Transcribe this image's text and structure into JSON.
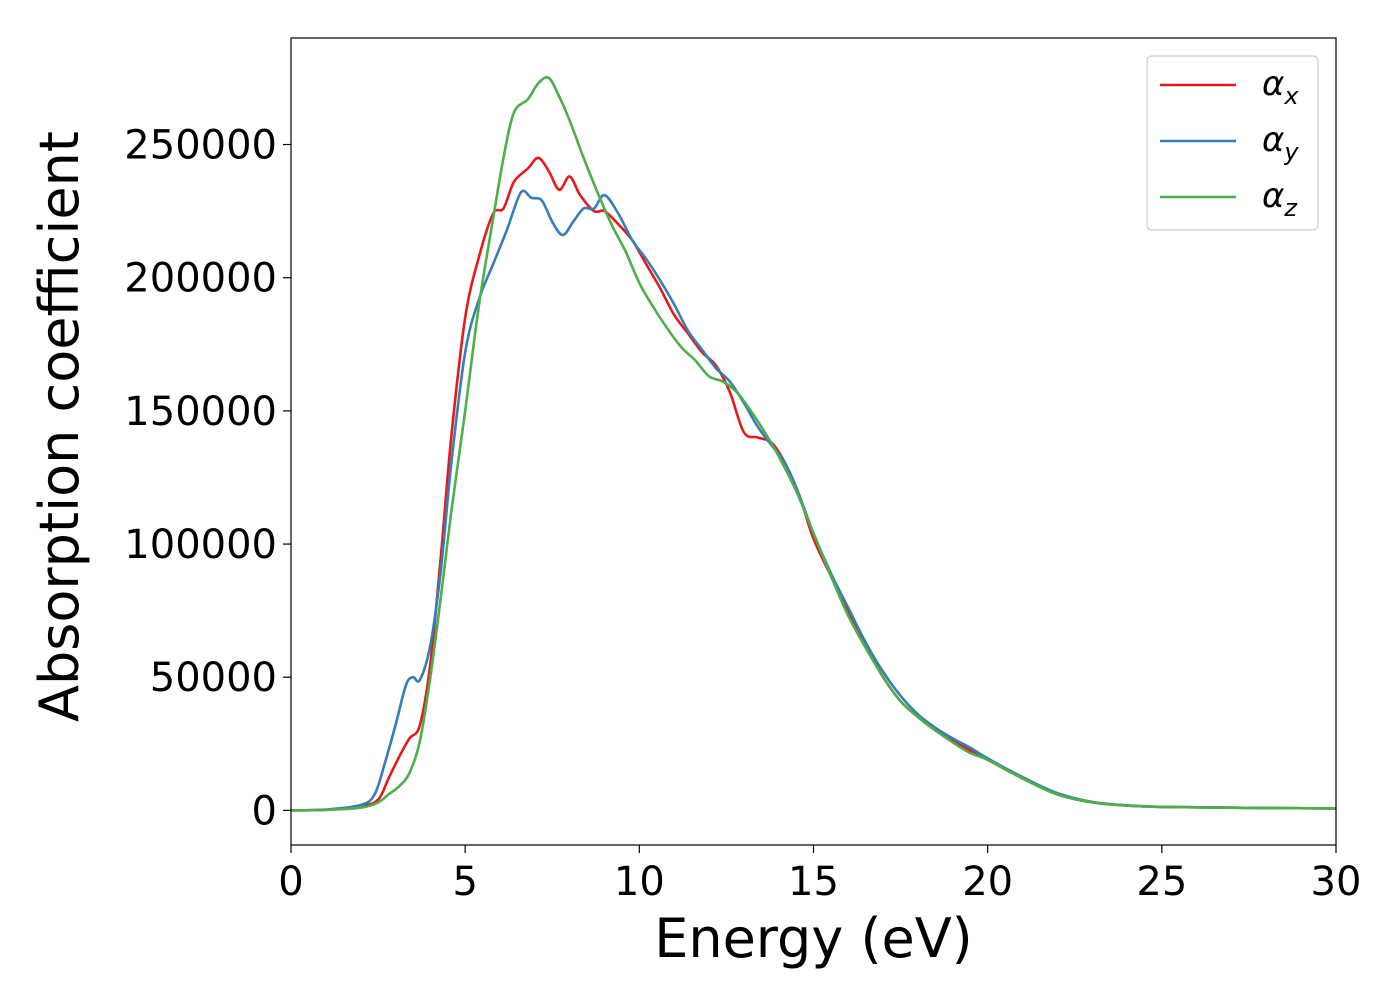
{
  "chart_data": {
    "type": "line",
    "title": "",
    "xlabel": "Energy (eV)",
    "ylabel": "Absorption coefficient",
    "xlim": [
      0,
      30
    ],
    "ylim": [
      -13000,
      290000
    ],
    "xticks": [
      0,
      5,
      10,
      15,
      20,
      25,
      30
    ],
    "yticks": [
      0,
      50000,
      100000,
      150000,
      200000,
      250000
    ],
    "grid": false,
    "legend_position": "top-right",
    "series": [
      {
        "name": "αx",
        "name_base": "α",
        "name_sub": "x",
        "color": "#e41a1c",
        "points": [
          [
            0,
            0
          ],
          [
            1,
            200
          ],
          [
            2,
            1500
          ],
          [
            2.5,
            4000
          ],
          [
            2.8,
            12000
          ],
          [
            3.1,
            20000
          ],
          [
            3.4,
            27000
          ],
          [
            3.7,
            32000
          ],
          [
            4,
            55000
          ],
          [
            4.3,
            95000
          ],
          [
            4.6,
            140000
          ],
          [
            5,
            185000
          ],
          [
            5.4,
            208000
          ],
          [
            5.8,
            224000
          ],
          [
            6.1,
            226000
          ],
          [
            6.4,
            236000
          ],
          [
            6.8,
            241000
          ],
          [
            7.1,
            245000
          ],
          [
            7.4,
            240000
          ],
          [
            7.7,
            233000
          ],
          [
            8,
            238000
          ],
          [
            8.3,
            231000
          ],
          [
            8.7,
            225000
          ],
          [
            9,
            225000
          ],
          [
            9.4,
            220000
          ],
          [
            9.8,
            214000
          ],
          [
            10.2,
            205000
          ],
          [
            10.6,
            196000
          ],
          [
            11,
            186000
          ],
          [
            11.4,
            179000
          ],
          [
            11.8,
            172000
          ],
          [
            12.2,
            167000
          ],
          [
            12.6,
            157000
          ],
          [
            13,
            142000
          ],
          [
            13.4,
            140000
          ],
          [
            13.8,
            138000
          ],
          [
            14.2,
            130000
          ],
          [
            14.6,
            118000
          ],
          [
            15,
            102000
          ],
          [
            15.5,
            88000
          ],
          [
            16,
            75000
          ],
          [
            16.5,
            62000
          ],
          [
            17,
            50000
          ],
          [
            17.5,
            41000
          ],
          [
            18,
            35000
          ],
          [
            18.5,
            30000
          ],
          [
            19,
            26000
          ],
          [
            19.5,
            22500
          ],
          [
            20,
            19000
          ],
          [
            21,
            12000
          ],
          [
            22,
            6000
          ],
          [
            23,
            3000
          ],
          [
            24,
            1800
          ],
          [
            25,
            1300
          ],
          [
            27,
            1000
          ],
          [
            30,
            700
          ]
        ]
      },
      {
        "name": "αy",
        "name_base": "α",
        "name_sub": "y",
        "color": "#377eb8",
        "points": [
          [
            0,
            0
          ],
          [
            1,
            300
          ],
          [
            2,
            2000
          ],
          [
            2.4,
            6000
          ],
          [
            2.7,
            18000
          ],
          [
            3,
            32000
          ],
          [
            3.3,
            47000
          ],
          [
            3.5,
            50000
          ],
          [
            3.7,
            49000
          ],
          [
            4,
            62000
          ],
          [
            4.3,
            90000
          ],
          [
            4.6,
            130000
          ],
          [
            5,
            172000
          ],
          [
            5.4,
            192000
          ],
          [
            5.8,
            205000
          ],
          [
            6.2,
            218000
          ],
          [
            6.6,
            232000
          ],
          [
            6.9,
            230000
          ],
          [
            7.2,
            229000
          ],
          [
            7.5,
            221000
          ],
          [
            7.8,
            216000
          ],
          [
            8.1,
            221000
          ],
          [
            8.4,
            226000
          ],
          [
            8.7,
            226000
          ],
          [
            9,
            231000
          ],
          [
            9.4,
            224000
          ],
          [
            9.8,
            214000
          ],
          [
            10.2,
            207000
          ],
          [
            10.6,
            199000
          ],
          [
            11,
            190000
          ],
          [
            11.4,
            180000
          ],
          [
            11.8,
            173000
          ],
          [
            12.2,
            166000
          ],
          [
            12.6,
            161000
          ],
          [
            13,
            153000
          ],
          [
            13.4,
            144000
          ],
          [
            13.8,
            137000
          ],
          [
            14.2,
            130000
          ],
          [
            14.6,
            118000
          ],
          [
            15,
            104000
          ],
          [
            15.5,
            89000
          ],
          [
            16,
            76000
          ],
          [
            16.5,
            63000
          ],
          [
            17,
            52000
          ],
          [
            17.5,
            43000
          ],
          [
            18,
            36000
          ],
          [
            18.5,
            31000
          ],
          [
            19,
            27000
          ],
          [
            19.5,
            23500
          ],
          [
            20,
            19500
          ],
          [
            21,
            12500
          ],
          [
            22,
            6500
          ],
          [
            23,
            3200
          ],
          [
            24,
            1900
          ],
          [
            25,
            1300
          ],
          [
            27,
            1000
          ],
          [
            30,
            700
          ]
        ]
      },
      {
        "name": "αz",
        "name_base": "α",
        "name_sub": "z",
        "color": "#4daf4a",
        "points": [
          [
            0,
            0
          ],
          [
            1,
            200
          ],
          [
            2,
            1000
          ],
          [
            2.5,
            3000
          ],
          [
            2.8,
            6000
          ],
          [
            3.1,
            9000
          ],
          [
            3.4,
            14000
          ],
          [
            3.7,
            26000
          ],
          [
            4,
            50000
          ],
          [
            4.3,
            80000
          ],
          [
            4.6,
            112000
          ],
          [
            5,
            150000
          ],
          [
            5.4,
            190000
          ],
          [
            5.8,
            222000
          ],
          [
            6.1,
            245000
          ],
          [
            6.4,
            262000
          ],
          [
            6.8,
            267000
          ],
          [
            7.1,
            273000
          ],
          [
            7.4,
            275000
          ],
          [
            7.7,
            268000
          ],
          [
            8,
            259000
          ],
          [
            8.4,
            245000
          ],
          [
            8.8,
            232000
          ],
          [
            9.2,
            220000
          ],
          [
            9.6,
            210000
          ],
          [
            10,
            198000
          ],
          [
            10.4,
            189000
          ],
          [
            10.8,
            181000
          ],
          [
            11.2,
            174000
          ],
          [
            11.6,
            169000
          ],
          [
            12,
            163000
          ],
          [
            12.4,
            161000
          ],
          [
            12.8,
            157000
          ],
          [
            13.2,
            150000
          ],
          [
            13.6,
            142000
          ],
          [
            14,
            133000
          ],
          [
            14.5,
            120000
          ],
          [
            15,
            104000
          ],
          [
            15.5,
            88000
          ],
          [
            16,
            73000
          ],
          [
            16.5,
            61000
          ],
          [
            17,
            50000
          ],
          [
            17.5,
            41000
          ],
          [
            18,
            35000
          ],
          [
            18.5,
            30000
          ],
          [
            19,
            25500
          ],
          [
            19.5,
            21500
          ],
          [
            20,
            19000
          ],
          [
            21,
            12000
          ],
          [
            22,
            6000
          ],
          [
            23,
            3000
          ],
          [
            24,
            1800
          ],
          [
            25,
            1300
          ],
          [
            27,
            1000
          ],
          [
            30,
            700
          ]
        ]
      }
    ]
  }
}
